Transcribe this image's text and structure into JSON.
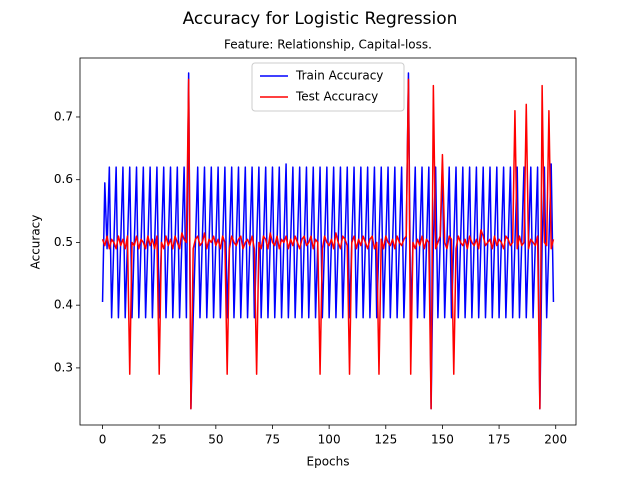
{
  "chart_data": {
    "type": "line",
    "title": "Accuracy for Logistic Regression",
    "subtitle": "Feature: Relationship, Capital-loss.",
    "xlabel": "Epochs",
    "ylabel": "Accuracy",
    "x": [
      0,
      1,
      2,
      3,
      4,
      5,
      6,
      7,
      8,
      9,
      10,
      11,
      12,
      13,
      14,
      15,
      16,
      17,
      18,
      19,
      20,
      21,
      22,
      23,
      24,
      25,
      26,
      27,
      28,
      29,
      30,
      31,
      32,
      33,
      34,
      35,
      36,
      37,
      38,
      39,
      40,
      41,
      42,
      43,
      44,
      45,
      46,
      47,
      48,
      49,
      50,
      51,
      52,
      53,
      54,
      55,
      56,
      57,
      58,
      59,
      60,
      61,
      62,
      63,
      64,
      65,
      66,
      67,
      68,
      69,
      70,
      71,
      72,
      73,
      74,
      75,
      76,
      77,
      78,
      79,
      80,
      81,
      82,
      83,
      84,
      85,
      86,
      87,
      88,
      89,
      90,
      91,
      92,
      93,
      94,
      95,
      96,
      97,
      98,
      99,
      100,
      101,
      102,
      103,
      104,
      105,
      106,
      107,
      108,
      109,
      110,
      111,
      112,
      113,
      114,
      115,
      116,
      117,
      118,
      119,
      120,
      121,
      122,
      123,
      124,
      125,
      126,
      127,
      128,
      129,
      130,
      131,
      132,
      133,
      134,
      135,
      136,
      137,
      138,
      139,
      140,
      141,
      142,
      143,
      144,
      145,
      146,
      147,
      148,
      149,
      150,
      151,
      152,
      153,
      154,
      155,
      156,
      157,
      158,
      159,
      160,
      161,
      162,
      163,
      164,
      165,
      166,
      167,
      168,
      169,
      170,
      171,
      172,
      173,
      174,
      175,
      176,
      177,
      178,
      179,
      180,
      181,
      182,
      183,
      184,
      185,
      186,
      187,
      188,
      189,
      190,
      191,
      192,
      193,
      194,
      195,
      196,
      197,
      198,
      199
    ],
    "series": [
      {
        "name": "Train Accuracy",
        "color": "#0000ff",
        "values": [
          0.405,
          0.595,
          0.49,
          0.62,
          0.38,
          0.5,
          0.62,
          0.38,
          0.5,
          0.62,
          0.38,
          0.5,
          0.62,
          0.38,
          0.5,
          0.62,
          0.38,
          0.5,
          0.62,
          0.38,
          0.5,
          0.62,
          0.38,
          0.5,
          0.62,
          0.38,
          0.5,
          0.62,
          0.38,
          0.5,
          0.62,
          0.38,
          0.5,
          0.62,
          0.38,
          0.5,
          0.62,
          0.38,
          0.77,
          0.235,
          0.38,
          0.5,
          0.62,
          0.38,
          0.5,
          0.62,
          0.38,
          0.5,
          0.62,
          0.38,
          0.5,
          0.62,
          0.38,
          0.5,
          0.62,
          0.38,
          0.5,
          0.62,
          0.38,
          0.5,
          0.62,
          0.38,
          0.5,
          0.62,
          0.38,
          0.5,
          0.62,
          0.38,
          0.5,
          0.62,
          0.38,
          0.5,
          0.62,
          0.38,
          0.5,
          0.62,
          0.38,
          0.5,
          0.62,
          0.38,
          0.5,
          0.625,
          0.38,
          0.5,
          0.62,
          0.38,
          0.5,
          0.62,
          0.38,
          0.5,
          0.62,
          0.38,
          0.5,
          0.62,
          0.38,
          0.5,
          0.62,
          0.38,
          0.5,
          0.62,
          0.38,
          0.5,
          0.62,
          0.38,
          0.5,
          0.62,
          0.38,
          0.5,
          0.62,
          0.38,
          0.5,
          0.62,
          0.38,
          0.5,
          0.62,
          0.38,
          0.5,
          0.62,
          0.38,
          0.5,
          0.62,
          0.38,
          0.5,
          0.62,
          0.38,
          0.5,
          0.62,
          0.38,
          0.5,
          0.62,
          0.38,
          0.5,
          0.62,
          0.38,
          0.5,
          0.77,
          0.38,
          0.5,
          0.62,
          0.38,
          0.5,
          0.62,
          0.38,
          0.5,
          0.62,
          0.235,
          0.5,
          0.62,
          0.38,
          0.5,
          0.62,
          0.38,
          0.5,
          0.62,
          0.38,
          0.5,
          0.62,
          0.38,
          0.5,
          0.62,
          0.38,
          0.5,
          0.62,
          0.38,
          0.5,
          0.62,
          0.38,
          0.5,
          0.62,
          0.38,
          0.5,
          0.62,
          0.38,
          0.5,
          0.62,
          0.38,
          0.5,
          0.62,
          0.38,
          0.5,
          0.62,
          0.38,
          0.5,
          0.62,
          0.38,
          0.5,
          0.62,
          0.38,
          0.5,
          0.62,
          0.38,
          0.5,
          0.62,
          0.235,
          0.5,
          0.62,
          0.38,
          0.5,
          0.625,
          0.405
        ]
      },
      {
        "name": "Test Accuracy",
        "color": "#ff0000",
        "values": [
          0.505,
          0.495,
          0.51,
          0.49,
          0.505,
          0.5,
          0.49,
          0.51,
          0.495,
          0.505,
          0.49,
          0.51,
          0.29,
          0.5,
          0.495,
          0.51,
          0.49,
          0.505,
          0.5,
          0.49,
          0.51,
          0.495,
          0.505,
          0.49,
          0.51,
          0.29,
          0.5,
          0.49,
          0.51,
          0.495,
          0.505,
          0.49,
          0.51,
          0.5,
          0.49,
          0.515,
          0.505,
          0.5,
          0.76,
          0.235,
          0.49,
          0.505,
          0.51,
          0.495,
          0.5,
          0.515,
          0.49,
          0.505,
          0.5,
          0.51,
          0.495,
          0.505,
          0.49,
          0.51,
          0.5,
          0.29,
          0.49,
          0.51,
          0.5,
          0.495,
          0.505,
          0.51,
          0.49,
          0.5,
          0.505,
          0.495,
          0.51,
          0.49,
          0.29,
          0.5,
          0.49,
          0.51,
          0.505,
          0.49,
          0.515,
          0.5,
          0.495,
          0.51,
          0.49,
          0.505,
          0.5,
          0.51,
          0.49,
          0.505,
          0.495,
          0.51,
          0.5,
          0.49,
          0.505,
          0.51,
          0.495,
          0.5,
          0.51,
          0.49,
          0.505,
          0.5,
          0.29,
          0.49,
          0.51,
          0.5,
          0.495,
          0.505,
          0.49,
          0.515,
          0.5,
          0.49,
          0.51,
          0.505,
          0.495,
          0.29,
          0.5,
          0.51,
          0.49,
          0.505,
          0.495,
          0.51,
          0.5,
          0.49,
          0.505,
          0.51,
          0.49,
          0.5,
          0.29,
          0.505,
          0.49,
          0.51,
          0.5,
          0.495,
          0.505,
          0.49,
          0.51,
          0.5,
          0.495,
          0.505,
          0.51,
          0.76,
          0.29,
          0.5,
          0.49,
          0.505,
          0.495,
          0.51,
          0.49,
          0.505,
          0.5,
          0.235,
          0.75,
          0.49,
          0.5,
          0.51,
          0.64,
          0.5,
          0.49,
          0.51,
          0.505,
          0.29,
          0.49,
          0.51,
          0.5,
          0.495,
          0.505,
          0.49,
          0.51,
          0.5,
          0.495,
          0.505,
          0.49,
          0.52,
          0.51,
          0.495,
          0.5,
          0.505,
          0.49,
          0.51,
          0.495,
          0.505,
          0.5,
          0.49,
          0.51,
          0.505,
          0.495,
          0.5,
          0.71,
          0.49,
          0.51,
          0.495,
          0.5,
          0.72,
          0.49,
          0.505,
          0.5,
          0.495,
          0.51,
          0.235,
          0.75,
          0.5,
          0.495,
          0.71,
          0.49,
          0.505
        ]
      }
    ],
    "xlim": [
      -9.95,
      208.95
    ],
    "xticks": [
      0,
      25,
      50,
      75,
      100,
      125,
      150,
      175,
      200
    ],
    "ylim": [
      0.209,
      0.794
    ],
    "yticks": [
      0.3,
      0.4,
      0.5,
      0.6,
      0.7
    ],
    "grid": false,
    "legend": "upper center"
  }
}
